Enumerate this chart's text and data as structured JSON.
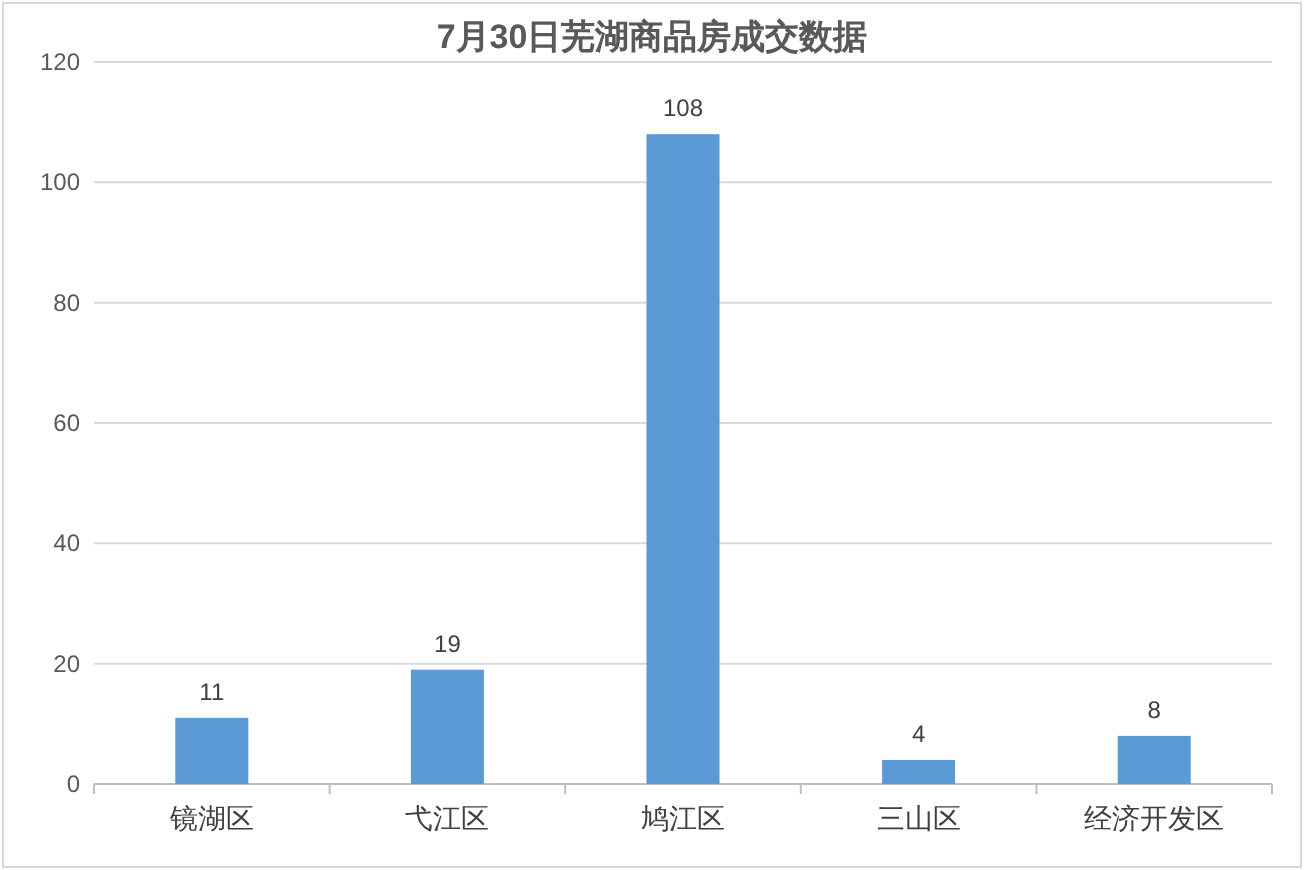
{
  "chart_data": {
    "type": "bar",
    "title": "7月30日芜湖商品房成交数据",
    "categories": [
      "镜湖区",
      "弋江区",
      "鸠江区",
      "三山区",
      "经济开发区"
    ],
    "values": [
      11,
      19,
      108,
      4,
      8
    ],
    "color": "#5b9bd5",
    "ylim": [
      0,
      120
    ],
    "yticks": [
      0,
      20,
      40,
      60,
      80,
      100,
      120
    ],
    "grid": "y",
    "data_labels": true
  }
}
